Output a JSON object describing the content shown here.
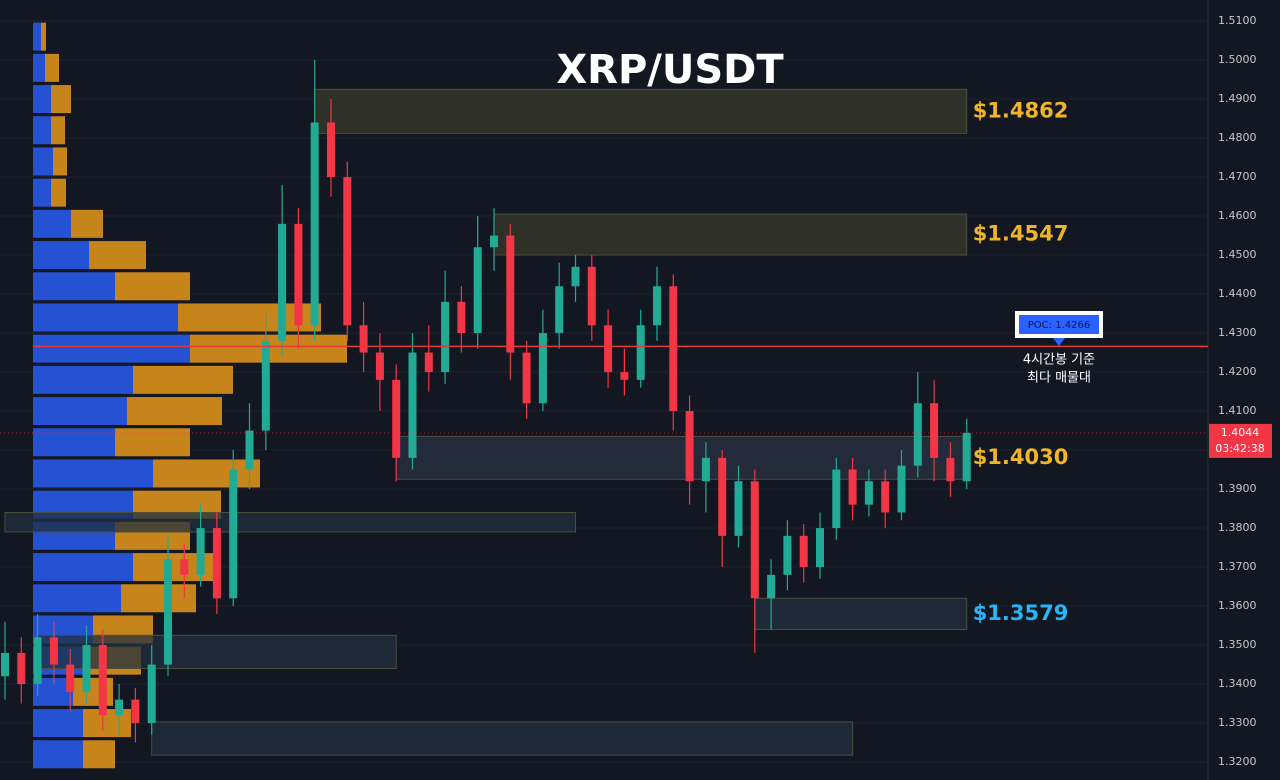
{
  "chart_data": {
    "type": "candlestick",
    "title": "XRP/USDT",
    "ylim": [
      1.3154,
      1.5154
    ],
    "yticks": [
      {
        "value": 1.51,
        "label": "1.5100"
      },
      {
        "value": 1.5,
        "label": "1.5000"
      },
      {
        "value": 1.49,
        "label": "1.4900"
      },
      {
        "value": 1.48,
        "label": "1.4800"
      },
      {
        "value": 1.47,
        "label": "1.4700"
      },
      {
        "value": 1.46,
        "label": "1.4600"
      },
      {
        "value": 1.45,
        "label": "1.4500"
      },
      {
        "value": 1.44,
        "label": "1.4400"
      },
      {
        "value": 1.43,
        "label": "1.4300"
      },
      {
        "value": 1.42,
        "label": "1.4200"
      },
      {
        "value": 1.41,
        "label": "1.4100"
      },
      {
        "value": 1.4,
        "label": "1.4000"
      },
      {
        "value": 1.39,
        "label": "1.3900"
      },
      {
        "value": 1.38,
        "label": "1.3800"
      },
      {
        "value": 1.37,
        "label": "1.3700"
      },
      {
        "value": 1.36,
        "label": "1.3600"
      },
      {
        "value": 1.35,
        "label": "1.3500"
      },
      {
        "value": 1.34,
        "label": "1.3400"
      },
      {
        "value": 1.33,
        "label": "1.3300"
      },
      {
        "value": 1.32,
        "label": "1.3200"
      }
    ],
    "grid": true,
    "up_color": "#22ab94",
    "down_color": "#f23645",
    "candles": [
      [
        1.342,
        1.356,
        1.336,
        1.348
      ],
      [
        1.348,
        1.352,
        1.335,
        1.34
      ],
      [
        1.34,
        1.358,
        1.337,
        1.352
      ],
      [
        1.352,
        1.356,
        1.34,
        1.345
      ],
      [
        1.345,
        1.349,
        1.333,
        1.338
      ],
      [
        1.338,
        1.355,
        1.335,
        1.35
      ],
      [
        1.35,
        1.354,
        1.328,
        1.332
      ],
      [
        1.332,
        1.34,
        1.327,
        1.336
      ],
      [
        1.336,
        1.339,
        1.325,
        1.33
      ],
      [
        1.33,
        1.35,
        1.327,
        1.345
      ],
      [
        1.345,
        1.378,
        1.342,
        1.372
      ],
      [
        1.372,
        1.376,
        1.362,
        1.368
      ],
      [
        1.368,
        1.386,
        1.365,
        1.38
      ],
      [
        1.38,
        1.384,
        1.358,
        1.362
      ],
      [
        1.362,
        1.4,
        1.36,
        1.395
      ],
      [
        1.395,
        1.412,
        1.39,
        1.405
      ],
      [
        1.405,
        1.435,
        1.4,
        1.428
      ],
      [
        1.428,
        1.468,
        1.424,
        1.458
      ],
      [
        1.458,
        1.462,
        1.426,
        1.432
      ],
      [
        1.432,
        1.5,
        1.428,
        1.484
      ],
      [
        1.484,
        1.49,
        1.465,
        1.47
      ],
      [
        1.47,
        1.474,
        1.428,
        1.432
      ],
      [
        1.432,
        1.438,
        1.42,
        1.425
      ],
      [
        1.425,
        1.43,
        1.41,
        1.418
      ],
      [
        1.418,
        1.422,
        1.392,
        1.398
      ],
      [
        1.398,
        1.43,
        1.395,
        1.425
      ],
      [
        1.425,
        1.432,
        1.415,
        1.42
      ],
      [
        1.42,
        1.446,
        1.417,
        1.438
      ],
      [
        1.438,
        1.442,
        1.425,
        1.43
      ],
      [
        1.43,
        1.46,
        1.426,
        1.452
      ],
      [
        1.452,
        1.462,
        1.446,
        1.455
      ],
      [
        1.455,
        1.458,
        1.418,
        1.425
      ],
      [
        1.425,
        1.428,
        1.408,
        1.412
      ],
      [
        1.412,
        1.436,
        1.41,
        1.43
      ],
      [
        1.43,
        1.448,
        1.426,
        1.442
      ],
      [
        1.442,
        1.45,
        1.438,
        1.447
      ],
      [
        1.447,
        1.45,
        1.428,
        1.432
      ],
      [
        1.432,
        1.436,
        1.416,
        1.42
      ],
      [
        1.42,
        1.426,
        1.414,
        1.418
      ],
      [
        1.418,
        1.436,
        1.416,
        1.432
      ],
      [
        1.432,
        1.447,
        1.428,
        1.442
      ],
      [
        1.442,
        1.445,
        1.405,
        1.41
      ],
      [
        1.41,
        1.414,
        1.386,
        1.392
      ],
      [
        1.392,
        1.402,
        1.384,
        1.398
      ],
      [
        1.398,
        1.4,
        1.37,
        1.378
      ],
      [
        1.378,
        1.396,
        1.375,
        1.392
      ],
      [
        1.392,
        1.395,
        1.348,
        1.362
      ],
      [
        1.362,
        1.372,
        1.354,
        1.368
      ],
      [
        1.368,
        1.382,
        1.364,
        1.378
      ],
      [
        1.378,
        1.381,
        1.366,
        1.37
      ],
      [
        1.37,
        1.384,
        1.367,
        1.38
      ],
      [
        1.38,
        1.398,
        1.377,
        1.395
      ],
      [
        1.395,
        1.398,
        1.382,
        1.386
      ],
      [
        1.386,
        1.395,
        1.383,
        1.392
      ],
      [
        1.392,
        1.395,
        1.38,
        1.384
      ],
      [
        1.384,
        1.4,
        1.382,
        1.396
      ],
      [
        1.396,
        1.42,
        1.393,
        1.412
      ],
      [
        1.412,
        1.418,
        1.392,
        1.398
      ],
      [
        1.398,
        1.402,
        1.388,
        1.392
      ],
      [
        1.392,
        1.408,
        1.39,
        1.4044
      ]
    ],
    "volume_profile": {
      "levels": [
        1.506,
        1.498,
        1.49,
        1.482,
        1.474,
        1.466,
        1.458,
        1.45,
        1.442,
        1.434,
        1.426,
        1.418,
        1.41,
        1.402,
        1.394,
        1.386,
        1.378,
        1.37,
        1.362,
        1.354,
        1.346,
        1.338,
        1.33,
        1.322
      ],
      "buy": [
        8,
        12,
        18,
        18,
        20,
        18,
        38,
        56,
        82,
        145,
        157,
        100,
        94,
        82,
        120,
        100,
        82,
        100,
        88,
        60,
        50,
        40,
        50,
        50
      ],
      "sell": [
        5,
        14,
        20,
        14,
        14,
        15,
        32,
        57,
        75,
        143,
        157,
        100,
        95,
        75,
        107,
        88,
        75,
        82,
        75,
        60,
        58,
        40,
        48,
        32
      ],
      "buy_color": "#2962ff",
      "sell_color": "#f5a01a"
    },
    "zones": [
      {
        "low": 1.4812,
        "high": 1.4925,
        "start": 19,
        "end": 59,
        "label": "$1.4862",
        "color": "#f0b429",
        "fill": "#3a3a2a"
      },
      {
        "low": 1.45,
        "high": 1.4605,
        "start": 30,
        "end": 59,
        "label": "$1.4547",
        "color": "#f0b429",
        "fill": "#3a3a2a"
      },
      {
        "low": 1.3925,
        "high": 1.4035,
        "start": 24,
        "end": 59,
        "label": "$1.4030",
        "color": "#f0b429",
        "fill": "#2a3344"
      },
      {
        "low": 1.354,
        "high": 1.362,
        "start": 46,
        "end": 59,
        "label": "$1.3579",
        "color": "#29b6f6",
        "fill": "#22303f"
      },
      {
        "low": 1.379,
        "high": 1.384,
        "start": 0,
        "end": 35,
        "fill": "#22303f"
      },
      {
        "low": 1.344,
        "high": 1.3525,
        "start": 2,
        "end": 24,
        "fill": "#22303f"
      },
      {
        "low": 1.3218,
        "high": 1.3303,
        "start": 9,
        "end": 52,
        "fill": "#22303f"
      }
    ],
    "poc": {
      "value": 1.4266,
      "label": "POC: 1.4266",
      "note": [
        "4시간봉 기준",
        "최다 매물대"
      ],
      "color": "#e53935"
    },
    "last_price": {
      "value": 1.4044,
      "countdown": "03:42:38",
      "color": "#f23645"
    }
  }
}
